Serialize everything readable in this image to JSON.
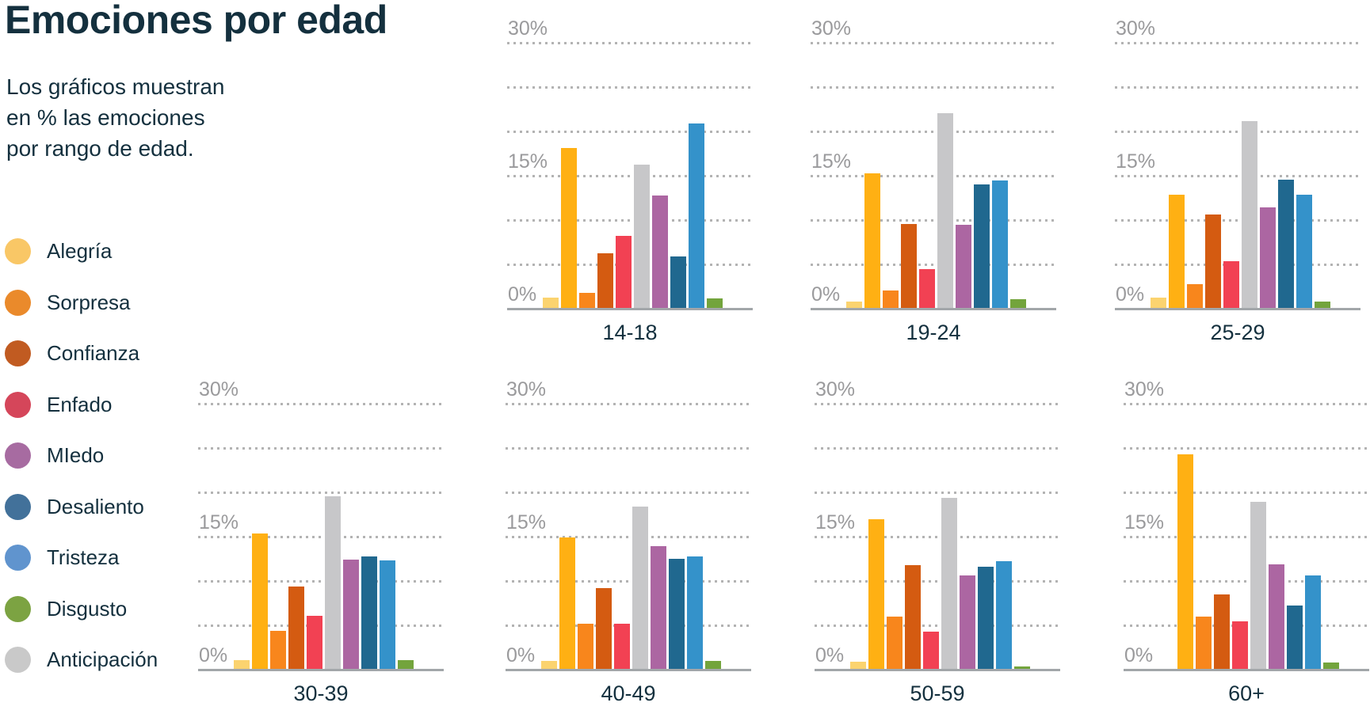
{
  "header": {
    "title": "Emociones por edad",
    "subtitle_lines": [
      "Los gráficos muestran",
      "en % las emociones",
      "por rango de edad."
    ]
  },
  "legend": {
    "items": [
      {
        "slug": "alegria",
        "label": "Alegría",
        "color": "#F9C766"
      },
      {
        "slug": "sorpresa",
        "label": "Sorpresa",
        "color": "#EA8A2B"
      },
      {
        "slug": "confianza",
        "label": "Confianza",
        "color": "#C15B21"
      },
      {
        "slug": "enfado",
        "label": "Enfado",
        "color": "#D5465A"
      },
      {
        "slug": "miedo",
        "label": "MIedo",
        "color": "#A76BA1"
      },
      {
        "slug": "desaliento",
        "label": "Desaliento",
        "color": "#42719A"
      },
      {
        "slug": "tristeza",
        "label": "Tristeza",
        "color": "#6094CE"
      },
      {
        "slug": "disgusto",
        "label": "Disgusto",
        "color": "#7CA342"
      },
      {
        "slug": "anticipacion",
        "label": "Anticipación",
        "color": "#C9C9C9"
      }
    ]
  },
  "chart_data": {
    "type": "bar",
    "small_multiples": true,
    "title": "Emociones por edad",
    "categories": [
      "14-18",
      "19-24",
      "25-29",
      "30-39",
      "40-49",
      "50-59",
      "60+"
    ],
    "y_axis": {
      "min": 0,
      "max": 30,
      "gridline_step": 5,
      "unit": "%",
      "tick_labels": [
        "30%",
        "15%",
        "0%"
      ],
      "grid": "dotted"
    },
    "series": [
      {
        "slug": "alegria",
        "name": "Alegría",
        "color": "#FBD36F",
        "values": [
          1.2,
          0.7,
          1.2,
          1.0,
          0.9,
          0.8,
          0
        ]
      },
      {
        "slug": "amber-unlabeled",
        "name": "",
        "color": "#FFB013",
        "values": [
          18.0,
          15.2,
          12.8,
          15.3,
          14.8,
          16.9,
          24.2
        ]
      },
      {
        "slug": "sorpresa",
        "name": "Sorpresa",
        "color": "#F8861C",
        "values": [
          1.7,
          2.0,
          2.7,
          4.3,
          5.1,
          5.9,
          5.9
        ]
      },
      {
        "slug": "confianza",
        "name": "Confianza",
        "color": "#D45B11",
        "values": [
          6.2,
          9.5,
          10.5,
          9.3,
          9.1,
          11.7,
          8.4
        ]
      },
      {
        "slug": "enfado",
        "name": "Enfado",
        "color": "#F24153",
        "values": [
          8.1,
          4.4,
          5.3,
          6.0,
          5.1,
          4.2,
          5.4
        ]
      },
      {
        "slug": "anticipacion",
        "name": "Anticipación",
        "color": "#C7C7C9",
        "values": [
          16.2,
          22.0,
          21.1,
          19.5,
          18.3,
          19.3,
          18.8
        ]
      },
      {
        "slug": "miedo",
        "name": "MIedo",
        "color": "#AC66A2",
        "values": [
          12.7,
          9.4,
          11.3,
          12.3,
          13.8,
          10.5,
          11.8
        ]
      },
      {
        "slug": "desaliento",
        "name": "Desaliento",
        "color": "#20688F",
        "values": [
          5.8,
          13.9,
          14.5,
          12.7,
          12.4,
          11.5,
          7.1
        ]
      },
      {
        "slug": "tristeza",
        "name": "Tristeza",
        "color": "#3492CA",
        "values": [
          20.8,
          14.4,
          12.8,
          12.2,
          12.7,
          12.1,
          10.5
        ]
      },
      {
        "slug": "disgusto",
        "name": "Disgusto",
        "color": "#73A43C",
        "values": [
          1.1,
          1.0,
          0.7,
          1.0,
          0.9,
          0.3,
          0.7
        ]
      }
    ]
  }
}
